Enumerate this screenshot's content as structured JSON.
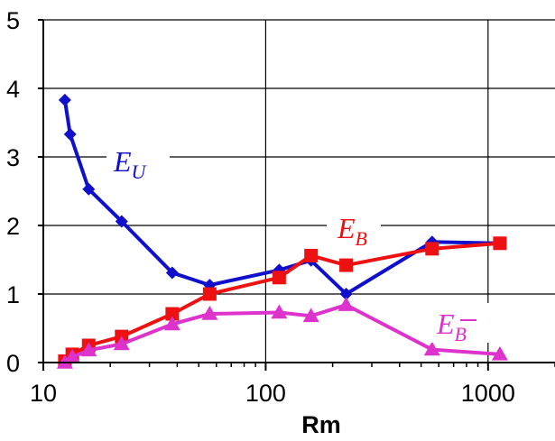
{
  "chart_data": {
    "type": "line",
    "title": "",
    "xlabel": "Rm",
    "ylabel": "",
    "x_scale": "log",
    "xlim": [
      10,
      2000
    ],
    "ylim": [
      0,
      5
    ],
    "x_ticks": [
      "10",
      "100",
      "1000"
    ],
    "y_ticks": [
      "0",
      "1",
      "2",
      "3",
      "4",
      "5"
    ],
    "grid": "vertical at decades, horizontal at integers",
    "legend": "inline labels next to lines",
    "series": [
      {
        "name": "E_U",
        "label_main": "E",
        "label_sub": "U",
        "color": "#1010cc",
        "marker": "diamond",
        "x": [
          12.5,
          13.2,
          16,
          22.5,
          38,
          56,
          115,
          160,
          230,
          560,
          1130
        ],
        "y": [
          3.83,
          3.33,
          2.53,
          2.06,
          1.31,
          1.13,
          1.35,
          1.49,
          1.0,
          1.76,
          1.74
        ]
      },
      {
        "name": "E_B",
        "label_main": "E",
        "label_sub": "B",
        "color": "#ee1111",
        "marker": "square",
        "x": [
          12.5,
          13.5,
          16,
          22.5,
          38,
          56,
          115,
          160,
          230,
          560,
          1130
        ],
        "y": [
          0.02,
          0.12,
          0.25,
          0.38,
          0.71,
          1.0,
          1.24,
          1.56,
          1.42,
          1.66,
          1.74
        ]
      },
      {
        "name": "E_B̄",
        "label_main": "E",
        "label_sub": "B",
        "label_overbar": true,
        "color": "#dd33cc",
        "marker": "triangle",
        "x": [
          12.5,
          13.5,
          16,
          22.5,
          38,
          56,
          115,
          160,
          230,
          560,
          1130
        ],
        "y": [
          0.0,
          0.08,
          0.18,
          0.27,
          0.56,
          0.71,
          0.73,
          0.68,
          0.84,
          0.19,
          0.12
        ]
      }
    ]
  }
}
